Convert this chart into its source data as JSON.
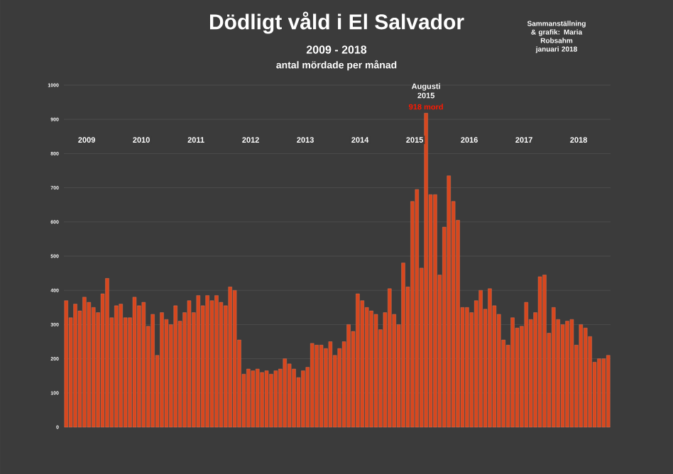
{
  "chart_data": {
    "type": "bar",
    "title": "Dödligt våld i El Salvador",
    "subtitle": "2009 - 2018",
    "categories": [
      null,
      null,
      null,
      null,
      null,
      null,
      null,
      null,
      null,
      null,
      null,
      null,
      null,
      null,
      null,
      null,
      null,
      null,
      null,
      null,
      null,
      null,
      null,
      null,
      null,
      null,
      null,
      null,
      null,
      null,
      null,
      null,
      null,
      null,
      null,
      null,
      null,
      null,
      null,
      null,
      null,
      null,
      null,
      null,
      null,
      null,
      null,
      null,
      null,
      null,
      null,
      null,
      null,
      null,
      null,
      null,
      null,
      null,
      null,
      null,
      null,
      null,
      null,
      null,
      null,
      null,
      null,
      null,
      null,
      null,
      null,
      null,
      null,
      null,
      null,
      null,
      null,
      null,
      null,
      null,
      null,
      null,
      null,
      null,
      null,
      null,
      null,
      null,
      null,
      null,
      null,
      null,
      null,
      null,
      null,
      null,
      null,
      null,
      null,
      null,
      null,
      null,
      null,
      null,
      null,
      null,
      null,
      null,
      null,
      null,
      null,
      null,
      null,
      null,
      null,
      null,
      null,
      null,
      null,
      null
    ],
    "values": [
      370,
      320,
      360,
      340,
      380,
      365,
      350,
      335,
      390,
      435,
      320,
      355,
      360,
      320,
      320,
      380,
      355,
      365,
      295,
      330,
      210,
      335,
      315,
      300,
      355,
      310,
      335,
      370,
      335,
      385,
      355,
      385,
      370,
      385,
      365,
      355,
      410,
      400,
      255,
      155,
      170,
      165,
      170,
      160,
      165,
      155,
      165,
      170,
      200,
      185,
      170,
      145,
      165,
      175,
      245,
      240,
      240,
      230,
      250,
      210,
      230,
      250,
      300,
      280,
      390,
      370,
      350,
      340,
      330,
      285,
      335,
      405,
      330,
      300,
      480,
      410,
      660,
      695,
      465,
      918,
      680,
      680,
      445,
      585,
      735,
      660,
      605,
      350,
      350,
      335,
      370,
      400,
      345,
      405,
      355,
      330,
      255,
      240,
      320,
      290,
      295,
      365,
      315,
      335,
      440,
      445,
      275,
      350,
      315,
      300,
      310,
      315,
      240,
      300,
      290,
      265,
      190,
      200,
      200,
      210
    ],
    "color": "#d8471e",
    "ylim": [
      0,
      1000
    ],
    "yticks": [
      0,
      100,
      200,
      300,
      400,
      500,
      600,
      700,
      800,
      900,
      1000
    ],
    "grid": "y",
    "annotations": [
      "antal mördade **per månad**",
      "Sammanställning & grafik: Maria Robsahm januari 2018",
      {
        "text": "Augusti 2015",
        "y": 918
      },
      {
        "text": "918 mord",
        "y": 918
      },
      "2009",
      "2010",
      "2011",
      "2012",
      "2013",
      "2014",
      "2015",
      "2016",
      "2017",
      "2018"
    ]
  }
}
